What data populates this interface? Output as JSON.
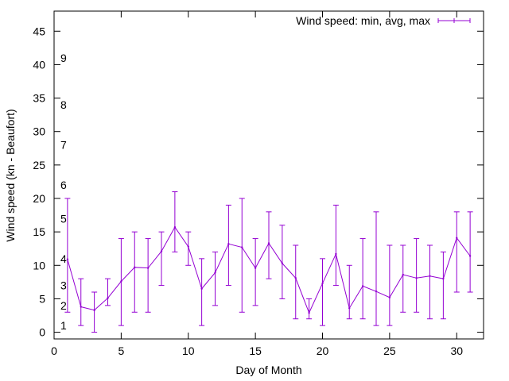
{
  "chart_data": {
    "type": "line",
    "title": "",
    "xlabel": "Day of Month",
    "ylabel": "Wind speed (kn - Beaufort)",
    "xlim": [
      0,
      32
    ],
    "ylim": [
      -1,
      48
    ],
    "x_ticks": [
      0,
      5,
      10,
      15,
      20,
      25,
      30
    ],
    "y_ticks": [
      0,
      5,
      10,
      15,
      20,
      25,
      30,
      35,
      40,
      45
    ],
    "grid": false,
    "legend_position": "top-right",
    "series": [
      {
        "name": "Wind speed: min, avg, max",
        "color": "#9400d3",
        "x": [
          1,
          2,
          3,
          4,
          5,
          6,
          7,
          8,
          9,
          10,
          11,
          12,
          13,
          14,
          15,
          16,
          17,
          18,
          19,
          20,
          21,
          22,
          23,
          24,
          25,
          26,
          27,
          28,
          29,
          30,
          31
        ],
        "avg": [
          10.9,
          3.8,
          3.3,
          5.1,
          7.6,
          9.7,
          9.6,
          12.1,
          15.7,
          12.8,
          6.5,
          8.9,
          13.2,
          12.7,
          9.6,
          13.3,
          10.3,
          8.1,
          2.9,
          7.3,
          11.7,
          3.6,
          6.9,
          6.1,
          5.2,
          8.6,
          8.1,
          8.4,
          8.0,
          14.1,
          11.4
        ],
        "min": [
          3,
          1,
          0,
          4,
          1,
          3,
          3,
          7,
          12,
          10,
          1,
          4,
          7,
          3,
          4,
          8,
          5,
          2,
          2,
          1,
          7,
          2,
          2,
          1,
          1,
          3,
          3,
          2,
          2,
          6,
          6
        ],
        "max": [
          20,
          8,
          6,
          8,
          14,
          15,
          14,
          15,
          21,
          15,
          11,
          12,
          19,
          20,
          14,
          18,
          16,
          13,
          5,
          11,
          19,
          10,
          14,
          18,
          13,
          13,
          14,
          13,
          12,
          18,
          18
        ]
      }
    ],
    "annotations": [
      {
        "text": "1",
        "y": 1
      },
      {
        "text": "2",
        "y": 4
      },
      {
        "text": "3",
        "y": 7
      },
      {
        "text": "4",
        "y": 11
      },
      {
        "text": "5",
        "y": 17
      },
      {
        "text": "6",
        "y": 22
      },
      {
        "text": "7",
        "y": 28
      },
      {
        "text": "8",
        "y": 34
      },
      {
        "text": "9",
        "y": 41
      }
    ]
  }
}
